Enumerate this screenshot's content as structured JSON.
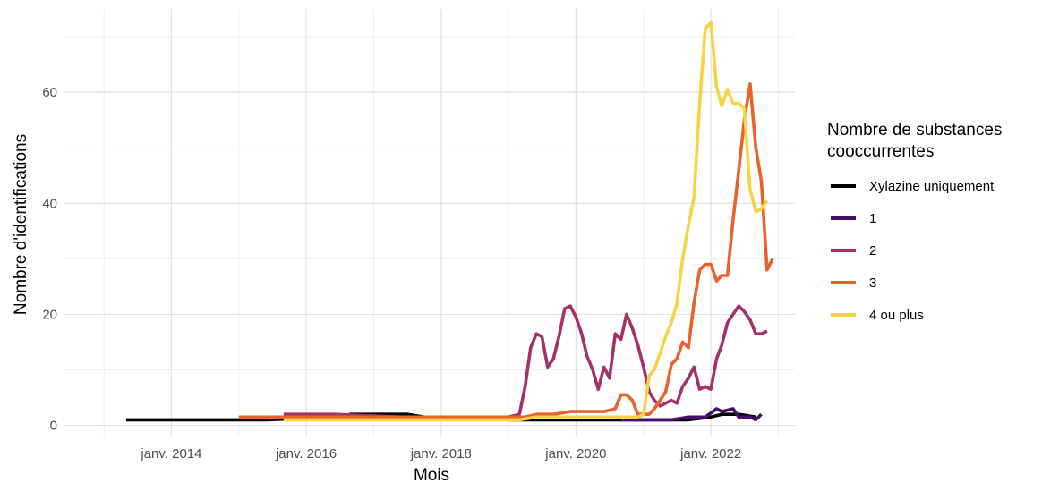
{
  "chart_data": {
    "type": "line",
    "title": "",
    "xlabel": "Mois",
    "ylabel": "Nombre d'identifications",
    "xlim": [
      "2012-06-01",
      "2023-04-01"
    ],
    "ylim": [
      -2,
      75
    ],
    "grid": true,
    "x_ticks": [
      {
        "date": "2014-01-01",
        "label": "janv. 2014"
      },
      {
        "date": "2016-01-01",
        "label": "janv. 2016"
      },
      {
        "date": "2018-01-01",
        "label": "janv. 2018"
      },
      {
        "date": "2020-01-01",
        "label": "janv. 2020"
      },
      {
        "date": "2022-01-01",
        "label": "janv. 2022"
      }
    ],
    "y_ticks": [
      0,
      20,
      40,
      60
    ],
    "legend": {
      "title_lines": [
        "Nombre de substances",
        "cooccurrentes"
      ],
      "position": "right"
    },
    "series": [
      {
        "name": "Xylazine uniquement",
        "color": "#000000",
        "points": [
          [
            "2013-05-01",
            1
          ],
          [
            "2014-01-01",
            1
          ],
          [
            "2015-01-01",
            1
          ],
          [
            "2015-06-01",
            1
          ],
          [
            "2016-06-01",
            1.5
          ],
          [
            "2016-09-01",
            2
          ],
          [
            "2017-01-01",
            2
          ],
          [
            "2017-07-01",
            2
          ],
          [
            "2017-10-01",
            1.5
          ],
          [
            "2018-06-01",
            1.5
          ],
          [
            "2019-01-01",
            1
          ],
          [
            "2020-01-01",
            1
          ],
          [
            "2020-09-01",
            1
          ],
          [
            "2021-01-01",
            1
          ],
          [
            "2021-06-01",
            1
          ],
          [
            "2021-09-01",
            1
          ],
          [
            "2022-01-01",
            1.5
          ],
          [
            "2022-03-01",
            2
          ],
          [
            "2022-06-01",
            2
          ],
          [
            "2022-09-01",
            1.5
          ]
        ]
      },
      {
        "name": "1",
        "color": "#440f6b",
        "points": [
          [
            "2020-09-01",
            1
          ],
          [
            "2020-12-01",
            1
          ],
          [
            "2021-03-01",
            1
          ],
          [
            "2021-06-01",
            1
          ],
          [
            "2021-09-01",
            1.5
          ],
          [
            "2021-12-01",
            1.5
          ],
          [
            "2022-02-01",
            3
          ],
          [
            "2022-03-01",
            2.5
          ],
          [
            "2022-05-01",
            3
          ],
          [
            "2022-06-01",
            1.5
          ],
          [
            "2022-08-01",
            1.5
          ],
          [
            "2022-09-01",
            1
          ],
          [
            "2022-10-01",
            2
          ]
        ]
      },
      {
        "name": "2",
        "color": "#a3326b",
        "points": [
          [
            "2015-09-01",
            2
          ],
          [
            "2016-06-01",
            2
          ],
          [
            "2017-06-01",
            1.5
          ],
          [
            "2018-06-01",
            1.5
          ],
          [
            "2019-01-01",
            1.5
          ],
          [
            "2019-03-01",
            2
          ],
          [
            "2019-04-01",
            7
          ],
          [
            "2019-05-01",
            14
          ],
          [
            "2019-06-01",
            16.5
          ],
          [
            "2019-07-01",
            16
          ],
          [
            "2019-08-01",
            10.5
          ],
          [
            "2019-09-01",
            12
          ],
          [
            "2019-10-01",
            16
          ],
          [
            "2019-11-01",
            21
          ],
          [
            "2019-12-01",
            21.5
          ],
          [
            "2020-01-01",
            19.5
          ],
          [
            "2020-02-01",
            16.5
          ],
          [
            "2020-03-01",
            12.5
          ],
          [
            "2020-04-01",
            10
          ],
          [
            "2020-05-01",
            6.5
          ],
          [
            "2020-06-01",
            10.5
          ],
          [
            "2020-07-01",
            8.5
          ],
          [
            "2020-08-01",
            16.5
          ],
          [
            "2020-09-01",
            15.5
          ],
          [
            "2020-10-01",
            20
          ],
          [
            "2020-11-01",
            17.5
          ],
          [
            "2020-12-01",
            14.5
          ],
          [
            "2021-01-01",
            10.5
          ],
          [
            "2021-02-01",
            6
          ],
          [
            "2021-03-01",
            4.5
          ],
          [
            "2021-04-01",
            3.5
          ],
          [
            "2021-05-01",
            4
          ],
          [
            "2021-06-01",
            4.5
          ],
          [
            "2021-07-01",
            4
          ],
          [
            "2021-08-01",
            7
          ],
          [
            "2021-09-01",
            8.5
          ],
          [
            "2021-10-01",
            10.5
          ],
          [
            "2021-11-01",
            6.5
          ],
          [
            "2021-12-01",
            7
          ],
          [
            "2022-01-01",
            6.5
          ],
          [
            "2022-02-01",
            12
          ],
          [
            "2022-03-01",
            14.5
          ],
          [
            "2022-04-01",
            18.5
          ],
          [
            "2022-05-01",
            20
          ],
          [
            "2022-06-01",
            21.5
          ],
          [
            "2022-07-01",
            20.5
          ],
          [
            "2022-08-01",
            19
          ],
          [
            "2022-09-01",
            16.5
          ],
          [
            "2022-10-01",
            16.5
          ],
          [
            "2022-11-01",
            17
          ]
        ]
      },
      {
        "name": "3",
        "color": "#e8632b",
        "points": [
          [
            "2015-01-01",
            1.5
          ],
          [
            "2015-09-01",
            1.5
          ],
          [
            "2016-06-01",
            1.5
          ],
          [
            "2017-06-01",
            1.5
          ],
          [
            "2018-06-01",
            1.5
          ],
          [
            "2019-04-01",
            1.5
          ],
          [
            "2019-06-01",
            2
          ],
          [
            "2019-09-01",
            2
          ],
          [
            "2019-12-01",
            2.5
          ],
          [
            "2020-03-01",
            2.5
          ],
          [
            "2020-06-01",
            2.5
          ],
          [
            "2020-08-01",
            3
          ],
          [
            "2020-09-01",
            5.5
          ],
          [
            "2020-10-01",
            5.5
          ],
          [
            "2020-11-01",
            4.5
          ],
          [
            "2020-12-01",
            2
          ],
          [
            "2021-02-01",
            2
          ],
          [
            "2021-03-01",
            3
          ],
          [
            "2021-04-01",
            4.5
          ],
          [
            "2021-05-01",
            6
          ],
          [
            "2021-06-01",
            11
          ],
          [
            "2021-07-01",
            12
          ],
          [
            "2021-08-01",
            15
          ],
          [
            "2021-09-01",
            14
          ],
          [
            "2021-10-01",
            22
          ],
          [
            "2021-11-01",
            28
          ],
          [
            "2021-12-01",
            29
          ],
          [
            "2022-01-01",
            29
          ],
          [
            "2022-02-01",
            26
          ],
          [
            "2022-03-01",
            27
          ],
          [
            "2022-04-01",
            27
          ],
          [
            "2022-05-01",
            37
          ],
          [
            "2022-06-01",
            46
          ],
          [
            "2022-07-01",
            55
          ],
          [
            "2022-08-01",
            61.5
          ],
          [
            "2022-09-01",
            50
          ],
          [
            "2022-10-01",
            44
          ],
          [
            "2022-11-01",
            28
          ],
          [
            "2022-12-01",
            30
          ]
        ]
      },
      {
        "name": "4 ou plus",
        "color": "#f5d546",
        "points": [
          [
            "2015-09-01",
            1
          ],
          [
            "2016-06-01",
            1
          ],
          [
            "2017-06-01",
            1
          ],
          [
            "2018-06-01",
            1
          ],
          [
            "2019-03-01",
            1
          ],
          [
            "2019-06-01",
            1.5
          ],
          [
            "2019-09-01",
            1.5
          ],
          [
            "2020-01-01",
            1.5
          ],
          [
            "2020-06-01",
            1.5
          ],
          [
            "2020-09-01",
            1.5
          ],
          [
            "2020-12-01",
            1.5
          ],
          [
            "2021-01-01",
            2
          ],
          [
            "2021-02-01",
            9
          ],
          [
            "2021-03-01",
            10
          ],
          [
            "2021-04-01",
            13
          ],
          [
            "2021-05-01",
            16
          ],
          [
            "2021-06-01",
            18.5
          ],
          [
            "2021-07-01",
            22
          ],
          [
            "2021-08-01",
            30
          ],
          [
            "2021-09-01",
            36
          ],
          [
            "2021-10-01",
            41
          ],
          [
            "2021-11-01",
            58
          ],
          [
            "2021-12-01",
            71.5
          ],
          [
            "2022-01-01",
            72.5
          ],
          [
            "2022-02-01",
            61
          ],
          [
            "2022-03-01",
            57.5
          ],
          [
            "2022-04-01",
            60.5
          ],
          [
            "2022-05-01",
            58
          ],
          [
            "2022-06-01",
            58
          ],
          [
            "2022-07-01",
            57
          ],
          [
            "2022-08-01",
            42.5
          ],
          [
            "2022-09-01",
            38.5
          ],
          [
            "2022-10-01",
            39
          ],
          [
            "2022-11-01",
            40.5
          ]
        ]
      }
    ]
  }
}
